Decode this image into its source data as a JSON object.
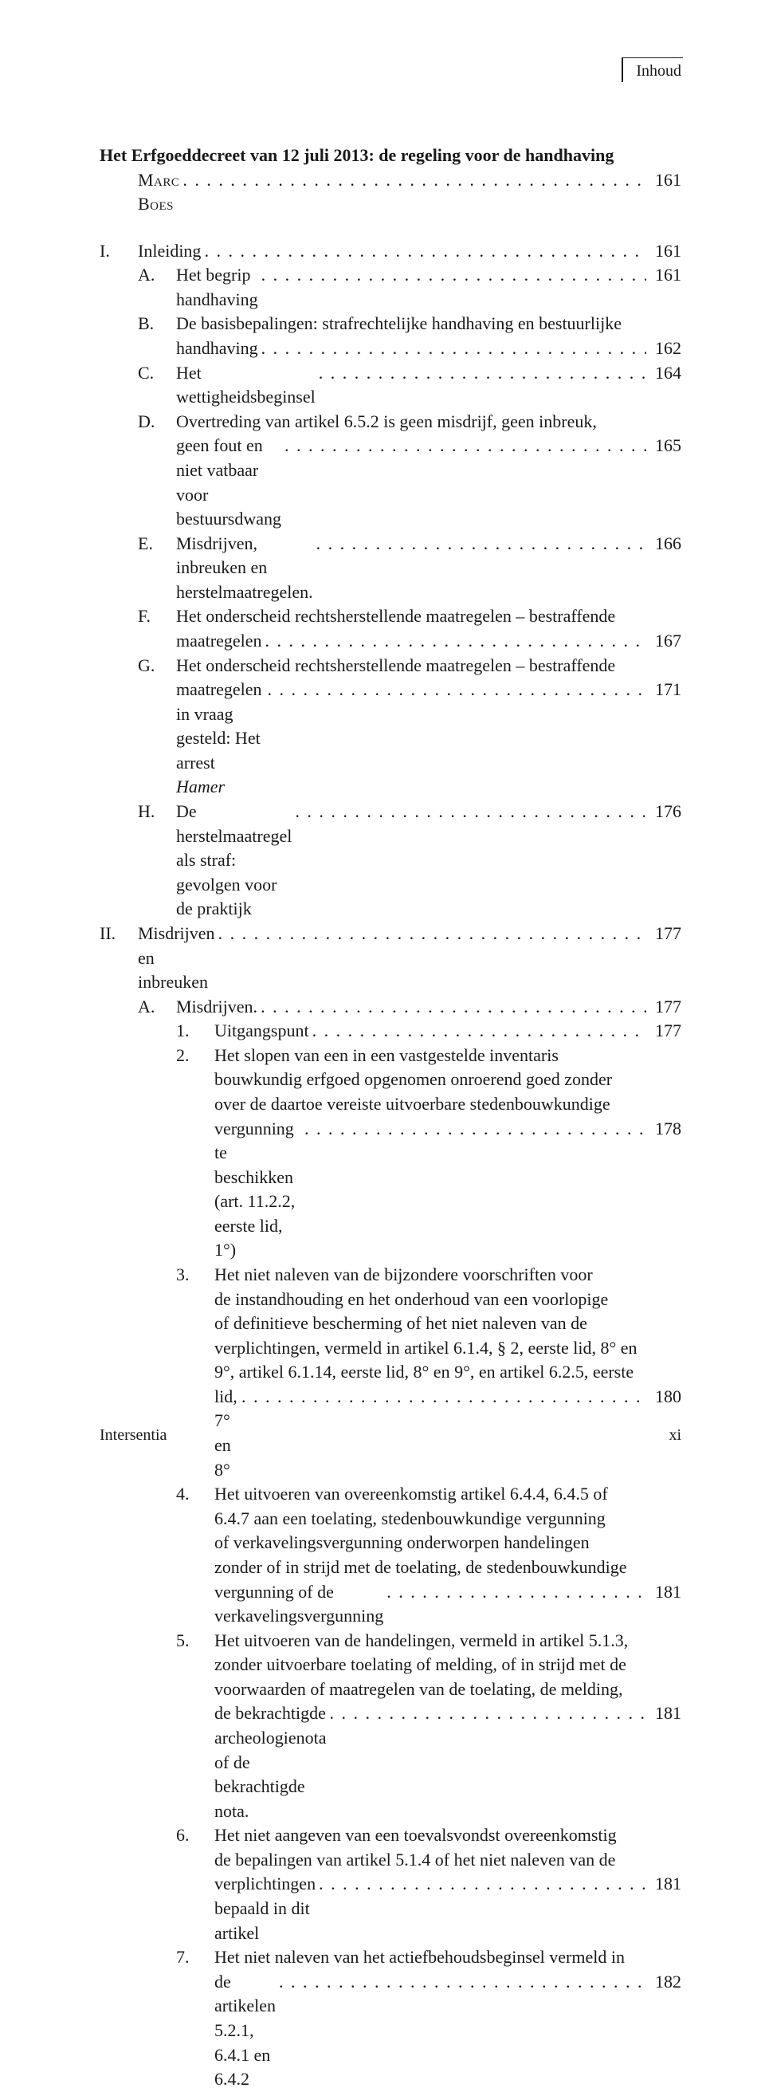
{
  "running_head": "Inhoud",
  "chapter_title": "Het Erfgoeddecreet van 12 juli 2013: de regeling voor de handhaving",
  "author": "Marc Boes",
  "author_page": "161",
  "entries": [
    {
      "level": "roman",
      "marker": "I.",
      "text": "Inleiding",
      "page": "161",
      "pre_gap": true
    },
    {
      "level": "alpha",
      "marker": "A.",
      "text": "Het begrip handhaving",
      "page": "161"
    },
    {
      "level": "alpha",
      "marker": "B.",
      "lines": [
        "De basisbepalingen: strafrechtelijke handhaving en bestuurlijke",
        "handhaving"
      ],
      "page": "162"
    },
    {
      "level": "alpha",
      "marker": "C.",
      "text": "Het wettigheidsbeginsel",
      "page": "164"
    },
    {
      "level": "alpha",
      "marker": "D.",
      "lines": [
        "Overtreding van artikel 6.5.2 is geen misdrijf, geen inbreuk,",
        "geen fout en niet vatbaar voor bestuursdwang"
      ],
      "page": "165"
    },
    {
      "level": "alpha",
      "marker": "E.",
      "text": "Misdrijven, inbreuken en herstelmaatregelen.",
      "page": "166"
    },
    {
      "level": "alpha",
      "marker": "F.",
      "lines": [
        "Het onderscheid rechtsherstellende maatregelen – bestraffende",
        "maatregelen"
      ],
      "page": "167"
    },
    {
      "level": "alpha",
      "marker": "G.",
      "lines_rich": [
        [
          {
            "t": "Het onderscheid rechtsherstellende maatregelen – bestraffende"
          }
        ],
        [
          {
            "t": "maatregelen in vraag gesteld: Het arrest "
          },
          {
            "t": "Hamer",
            "italic": true
          }
        ]
      ],
      "page": "171"
    },
    {
      "level": "alpha",
      "marker": "H.",
      "text": "De herstelmaatregel als straf: gevolgen voor de praktijk",
      "page": "176"
    },
    {
      "level": "roman",
      "marker": "II.",
      "text": "Misdrijven en inbreuken",
      "page": "177"
    },
    {
      "level": "alpha",
      "marker": "A.",
      "text": "Misdrijven.",
      "page": "177"
    },
    {
      "level": "num",
      "marker": "1.",
      "text": "Uitgangspunt",
      "page": "177"
    },
    {
      "level": "num",
      "marker": "2.",
      "lines": [
        "Het slopen van een in een vastgestelde inventaris",
        "bouwkundig erfgoed opgenomen onroerend goed zonder",
        "over de daartoe vereiste uitvoerbare stedenbouwkundige",
        "vergunning te beschikken (art. 11.2.2, eerste lid, 1°)"
      ],
      "page": "178"
    },
    {
      "level": "num",
      "marker": "3.",
      "lines": [
        "Het niet naleven van de bijzondere voorschriften voor",
        "de instandhouding en het onderhoud van een voorlopige",
        "of definitieve bescherming of het niet naleven van de",
        "verplichtingen, vermeld in artikel 6.1.4, § 2, eerste lid, 8° en",
        "9°, artikel 6.1.14, eerste lid, 8° en 9°, en artikel 6.2.5, eerste",
        "lid, 7° en 8°"
      ],
      "page": "180"
    },
    {
      "level": "num",
      "marker": "4.",
      "lines": [
        "Het uitvoeren van overeenkomstig artikel 6.4.4, 6.4.5 of",
        "6.4.7 aan een toelating, stedenbouwkundige vergunning",
        "of verkavelingsvergunning onderworpen handelingen",
        "zonder of in strijd met de toelating, de stedenbouwkundige",
        "vergunning of de verkavelingsvergunning"
      ],
      "page": "181"
    },
    {
      "level": "num",
      "marker": "5.",
      "lines": [
        "Het uitvoeren van de handelingen, vermeld in artikel 5.1.3,",
        "zonder uitvoerbare toelating of melding, of in strijd met de",
        "voorwaarden of maatregelen van de toelating, de melding,",
        "de bekrachtigde archeologienota of de bekrachtigde nota."
      ],
      "page": "181"
    },
    {
      "level": "num",
      "marker": "6.",
      "lines": [
        "Het niet aangeven van een toevalsvondst overeenkomstig",
        "de bepalingen van artikel 5.1.4 of het niet naleven van de",
        "verplichtingen bepaald in dit artikel"
      ],
      "page": "181"
    },
    {
      "level": "num",
      "marker": "7.",
      "lines": [
        "Het niet naleven van het actiefbehoudsbeginsel vermeld in",
        "de artikelen 5.2.1, 6.4.1 en 6.4.2"
      ],
      "page": "182"
    }
  ],
  "footer_left": "Intersentia",
  "footer_right": "xi"
}
